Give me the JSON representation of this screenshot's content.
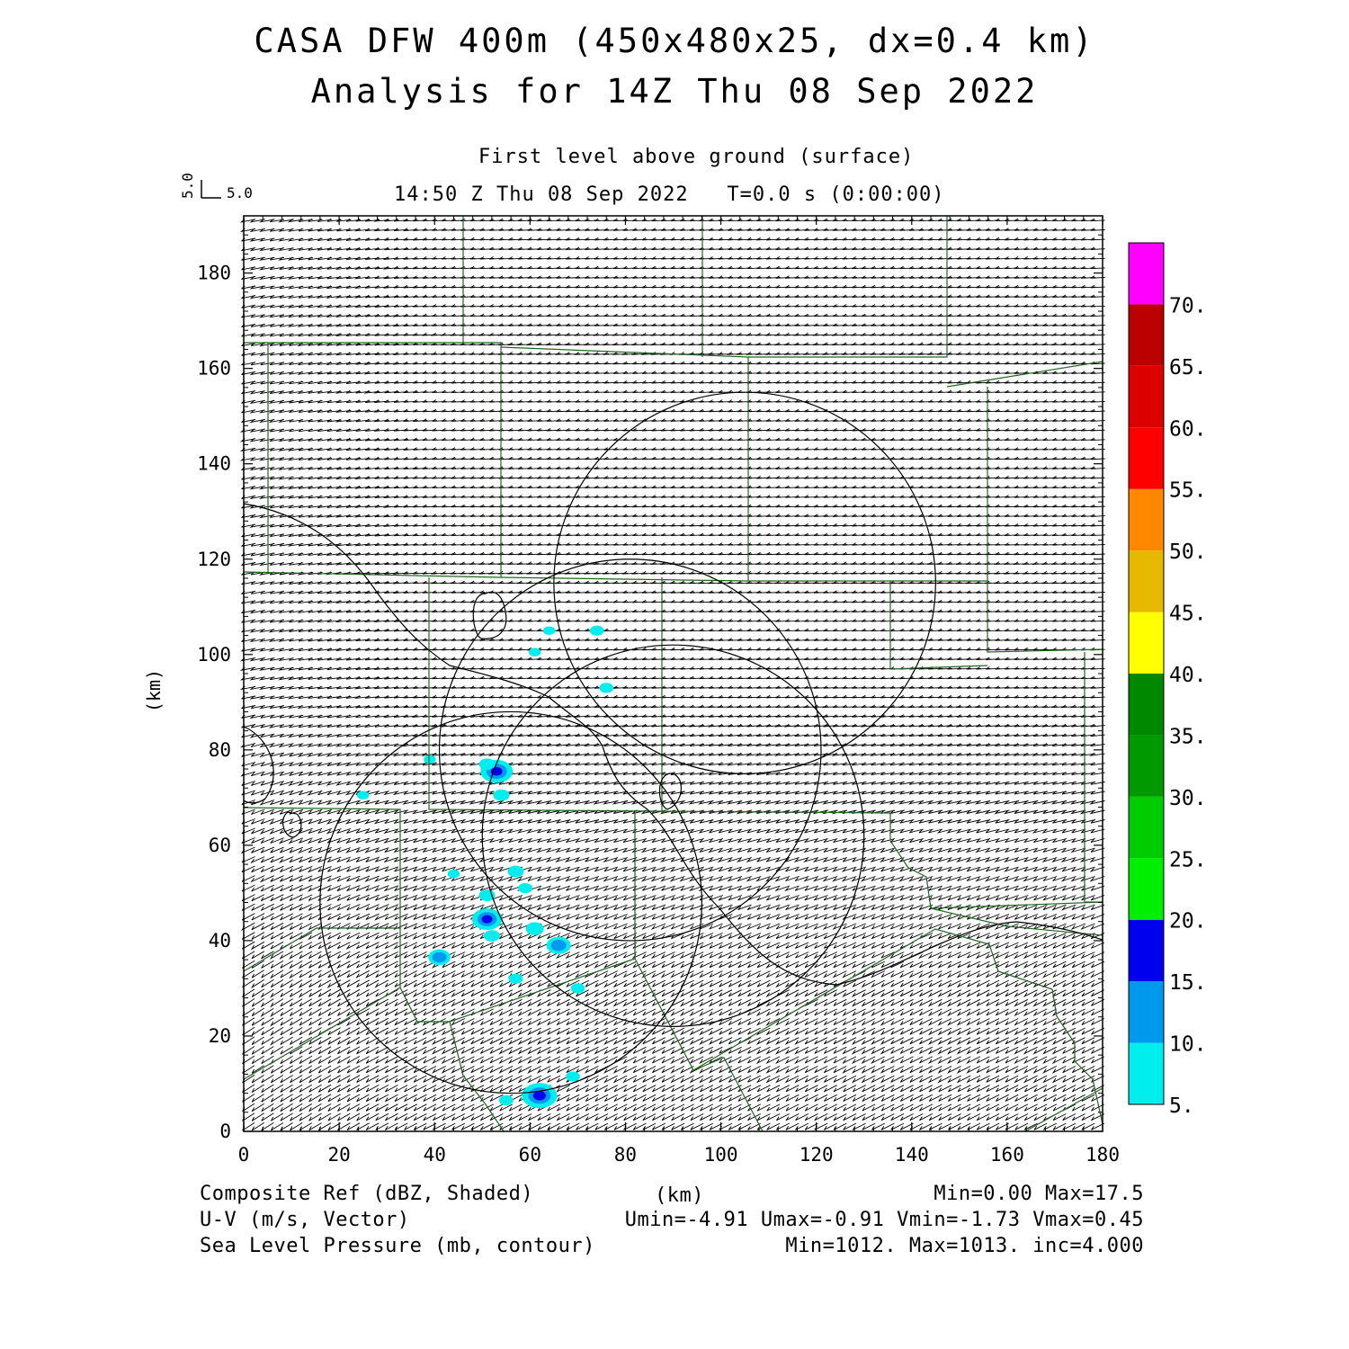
{
  "title_line1": "CASA DFW 400m (450x480x25, dx=0.4 km)",
  "title_line2": "Analysis for 14Z Thu 08 Sep 2022",
  "level_label": "First level above ground (surface)",
  "time_label": "14:50 Z Thu 08 Sep 2022   T=0.0 s (0:00:00)",
  "vector_scale": {
    "u": "5.0",
    "v": "5.0"
  },
  "footer": {
    "left": [
      "Composite Ref (dBZ, Shaded)",
      "U-V (m/s, Vector)",
      "Sea Level Pressure (mb, contour)"
    ],
    "center": "(km)",
    "right": [
      "Min=0.00 Max=17.5",
      "Umin=-4.91 Umax=-0.91 Vmin=-1.73 Vmax=0.45",
      "Min=1012. Max=1013. inc=4.000"
    ]
  },
  "chart_data": {
    "type": "heatmap",
    "title": "CASA DFW 400m (450x480x25, dx=0.4 km)",
    "subtitle": "Analysis for 14Z Thu 08 Sep 2022",
    "xlabel": "(km)",
    "ylabel": "(km)",
    "xlim": [
      0,
      180
    ],
    "ylim": [
      0,
      192
    ],
    "x_ticks": [
      "0",
      "20",
      "40",
      "60",
      "80",
      "100",
      "120",
      "140",
      "160",
      "180"
    ],
    "y_ticks": [
      "0",
      "20",
      "40",
      "60",
      "80",
      "100",
      "120",
      "140",
      "160",
      "180"
    ],
    "colorbar": {
      "labels": [
        "5.",
        "10.",
        "15.",
        "20.",
        "25.",
        "30.",
        "35.",
        "40.",
        "45.",
        "50.",
        "55.",
        "60.",
        "65.",
        "70."
      ],
      "colors": [
        "#00eeee",
        "#0099ee",
        "#0000ee",
        "#00ee00",
        "#00cc00",
        "#009900",
        "#008800",
        "#ffff00",
        "#e6b800",
        "#ff8800",
        "#ff0000",
        "#dd0000",
        "#bb0000",
        "#ff00ff"
      ]
    },
    "radar_rings": [
      {
        "cx": 105,
        "cy": 115,
        "r": 40
      },
      {
        "cx": 81,
        "cy": 80,
        "r": 40
      },
      {
        "cx": 90,
        "cy": 62,
        "r": 40
      },
      {
        "cx": 56,
        "cy": 48,
        "r": 40
      }
    ],
    "reflectivity_echoes": [
      {
        "x": 53,
        "y": 75.5,
        "dbz": 16
      },
      {
        "x": 51,
        "y": 77,
        "dbz": 8
      },
      {
        "x": 54,
        "y": 70.5,
        "dbz": 8
      },
      {
        "x": 51,
        "y": 44.5,
        "dbz": 15
      },
      {
        "x": 52,
        "y": 41,
        "dbz": 8
      },
      {
        "x": 51,
        "y": 49.5,
        "dbz": 8
      },
      {
        "x": 57,
        "y": 54.5,
        "dbz": 8
      },
      {
        "x": 59,
        "y": 51,
        "dbz": 7
      },
      {
        "x": 61,
        "y": 42.5,
        "dbz": 9
      },
      {
        "x": 66,
        "y": 39,
        "dbz": 12
      },
      {
        "x": 41,
        "y": 36.5,
        "dbz": 11
      },
      {
        "x": 57,
        "y": 32,
        "dbz": 7
      },
      {
        "x": 70,
        "y": 30,
        "dbz": 7
      },
      {
        "x": 62,
        "y": 7.5,
        "dbz": 17.5
      },
      {
        "x": 55,
        "y": 6.5,
        "dbz": 7
      },
      {
        "x": 69,
        "y": 11.5,
        "dbz": 7
      },
      {
        "x": 74,
        "y": 105,
        "dbz": 7
      },
      {
        "x": 64,
        "y": 105,
        "dbz": 6
      },
      {
        "x": 76,
        "y": 93,
        "dbz": 7
      },
      {
        "x": 61,
        "y": 100.5,
        "dbz": 6
      },
      {
        "x": 25,
        "y": 70.5,
        "dbz": 6
      },
      {
        "x": 39,
        "y": 78,
        "dbz": 6
      },
      {
        "x": 44,
        "y": 54,
        "dbz": 6
      }
    ],
    "wind_summary": {
      "umin": -4.91,
      "umax": -0.91,
      "vmin": -1.73,
      "vmax": 0.45,
      "units": "m/s"
    },
    "reflectivity_range": {
      "min": 0.0,
      "max": 17.5,
      "units": "dBZ"
    },
    "pressure_range": {
      "min": 1012,
      "max": 1013,
      "inc": 4.0,
      "units": "mb"
    }
  }
}
